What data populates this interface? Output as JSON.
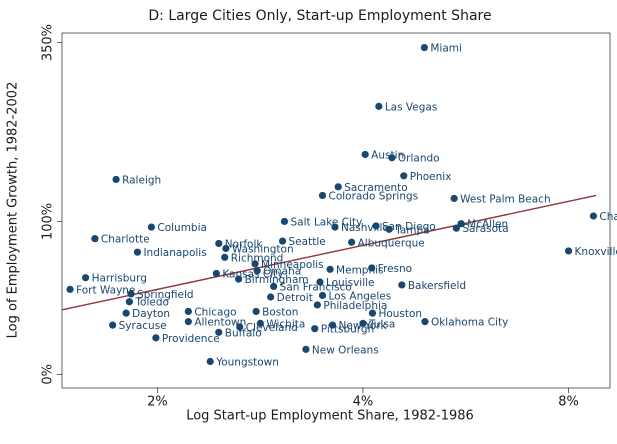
{
  "chart_data": {
    "type": "scatter",
    "title": "D: Large Cities Only, Start-up Employment Share",
    "x_label": "Log Start-up Employment Share, 1982-1986",
    "y_label": "Log of Employment Growth, 1982-2002",
    "xscale": "log",
    "yscale": "log1p",
    "xlim": [
      1.45,
      9.2
    ],
    "ylim": [
      -6,
      370
    ],
    "xticks": [
      {
        "value": 2,
        "label": "2%"
      },
      {
        "value": 4,
        "label": "4%"
      },
      {
        "value": 8,
        "label": "8%"
      }
    ],
    "yticks": [
      {
        "value": 0,
        "label": "0%"
      },
      {
        "value": 100,
        "label": "100%"
      },
      {
        "value": 350,
        "label": "350%"
      }
    ],
    "color": "#1a476f",
    "labels": [
      "Miami",
      "Las Vegas",
      "Austin",
      "Orlando",
      "Phoenix",
      "Raleigh",
      "Sacramento",
      "Colorado Springs",
      "West Palm Beach",
      "Charleston",
      "Knoxville",
      "McAllen",
      "Sarasota",
      "Salt Lake City",
      "Columbia",
      "Charlotte",
      "Indianapolis",
      "Nashville",
      "San Diego",
      "Tampa",
      "Norfolk",
      "Richmond",
      "Minneapolis",
      "Memphis",
      "Fresno",
      "Bakersfield",
      "Harrisburg",
      "Fort Wayne",
      "Springfield",
      "Toledo",
      "Dayton",
      "Syracuse",
      "Providence",
      "Youngstown",
      "New Orleans",
      "Oklahoma City",
      "Houston",
      "Pittsburgh",
      "New York",
      "Tulsa",
      "Los Angeles",
      "Philadelphia",
      "Detroit",
      "Louisville",
      "San Francisco",
      "Boston",
      "Wichita",
      "Allentown",
      "Cleveland",
      "Buffalo",
      "Chicago",
      "Kansas City",
      "Birmingham",
      "Omaha",
      "Seattle",
      "Washington",
      "Albuquerque"
    ],
    "x": [
      4.92,
      4.22,
      4.03,
      4.41,
      4.59,
      1.74,
      3.68,
      3.49,
      5.44,
      8.7,
      8.0,
      5.57,
      5.48,
      3.07,
      1.96,
      1.62,
      1.87,
      3.64,
      4.18,
      4.37,
      2.46,
      2.51,
      2.78,
      3.58,
      4.12,
      4.56,
      1.57,
      1.49,
      1.83,
      1.82,
      1.8,
      1.72,
      1.99,
      2.39,
      3.3,
      4.93,
      4.13,
      3.4,
      3.61,
      4.0,
      3.49,
      3.43,
      2.93,
      3.46,
      2.96,
      2.79,
      2.83,
      2.22,
      2.64,
      2.46,
      2.22,
      2.44,
      2.63,
      2.8,
      3.05,
      2.52,
      3.85
    ],
    "values": [
      340,
      237,
      171,
      167,
      146,
      142,
      134,
      125,
      122,
      105,
      75,
      98,
      94,
      100,
      95,
      85,
      74,
      95,
      96,
      93,
      81,
      70,
      65,
      61,
      62,
      50,
      55,
      47,
      44,
      39,
      32,
      25,
      18,
      6,
      12,
      27,
      32,
      23,
      25,
      26,
      43,
      37,
      42,
      52,
      49,
      33,
      26,
      27,
      24,
      21,
      33,
      58,
      54,
      60,
      83,
      77,
      82
    ],
    "fit": {
      "x": [
        1.45,
        8.78
      ],
      "values": [
        34,
        125
      ],
      "color": "#90353b"
    }
  }
}
